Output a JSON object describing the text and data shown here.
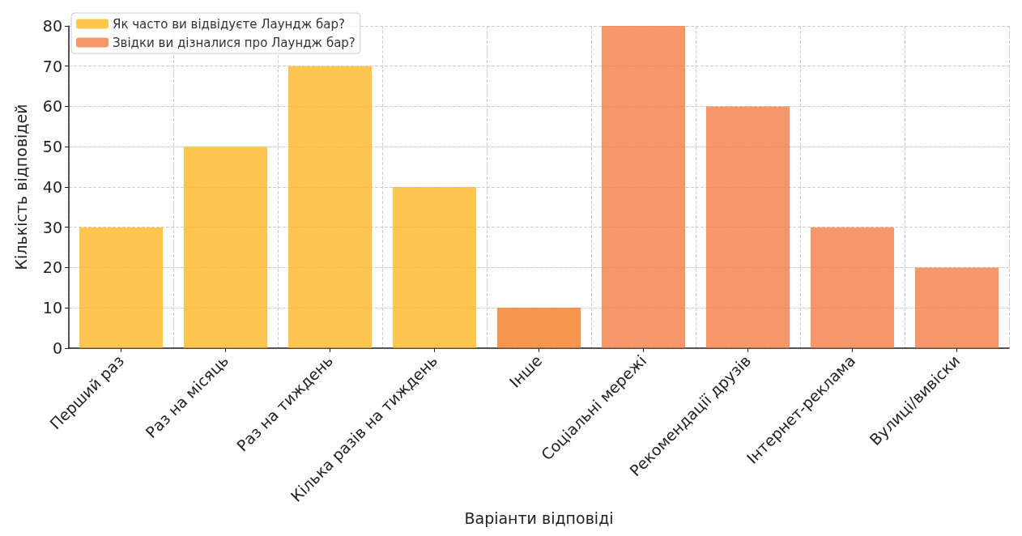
{
  "chart_data": {
    "type": "bar",
    "xlabel": "Варіанти відповіді",
    "ylabel": "Кількість відповідей",
    "categories": [
      "Перший раз",
      "Раз на місяць",
      "Раз на тиждень",
      "Кілька разів на тиждень",
      "Інше",
      "Соціальні мережі",
      "Рекомендації друзів",
      "Інтернет-реклама",
      "Вулиці/вивіски"
    ],
    "series": [
      {
        "name": "Як часто ви відвідуєте Лаундж бар?",
        "color": "#feb823",
        "colors": [
          "#feb823",
          "#feb823",
          "#feb823",
          "#feb823",
          "#f47a20",
          "#feb823",
          "#feb823",
          "#feb823",
          "#feb823"
        ],
        "values": [
          30,
          50,
          70,
          40,
          10,
          null,
          null,
          null,
          null
        ]
      },
      {
        "name": "Звідки ви дізналися про Лаундж бар?",
        "color": "#f27d45",
        "values": [
          null,
          null,
          null,
          null,
          null,
          80,
          60,
          30,
          20
        ]
      }
    ],
    "ylim": [
      0,
      80
    ],
    "yticks": [
      0,
      10,
      20,
      30,
      40,
      50,
      60,
      70,
      80
    ],
    "grid": true,
    "legend": "top left"
  }
}
